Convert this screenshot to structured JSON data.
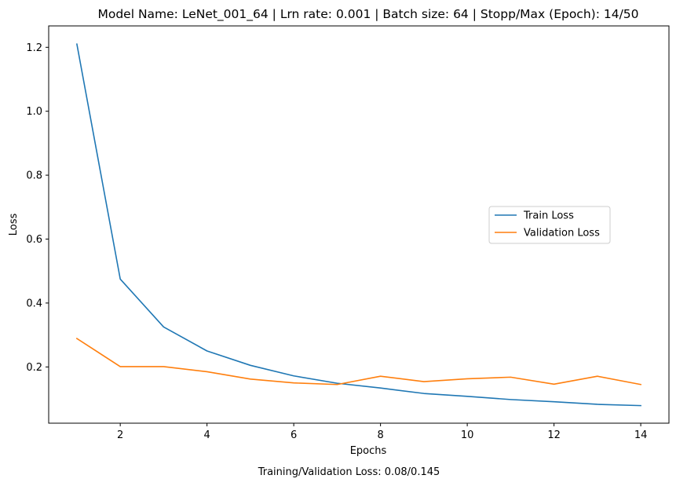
{
  "caption": "Training/Validation Loss: 0.08/0.145",
  "chart_data": {
    "type": "line",
    "title": "Model Name: LeNet_001_64 | Lrn rate: 0.001 | Batch size: 64 | Stopp/Max (Epoch): 14/50",
    "xlabel": "Epochs",
    "ylabel": "Loss",
    "xlim": [
      0.35,
      14.65
    ],
    "ylim": [
      0.024,
      1.267
    ],
    "xticks": [
      2,
      4,
      6,
      8,
      10,
      12,
      14
    ],
    "xtick_labels": [
      "2",
      "4",
      "6",
      "8",
      "10",
      "12",
      "14"
    ],
    "yticks": [
      0.2,
      0.4,
      0.6,
      0.8,
      1.0,
      1.2
    ],
    "ytick_labels": [
      "0.2",
      "0.4",
      "0.6",
      "0.8",
      "1.0",
      "1.2"
    ],
    "x": [
      1,
      2,
      3,
      4,
      5,
      6,
      7,
      8,
      9,
      10,
      11,
      12,
      13,
      14
    ],
    "series": [
      {
        "name": "Train Loss",
        "color": "#1f77b4",
        "values": [
          1.21,
          0.475,
          0.325,
          0.25,
          0.205,
          0.172,
          0.149,
          0.134,
          0.117,
          0.108,
          0.098,
          0.091,
          0.083,
          0.079
        ]
      },
      {
        "name": "Validation Loss",
        "color": "#ff7f0e",
        "values": [
          0.289,
          0.201,
          0.201,
          0.185,
          0.162,
          0.15,
          0.145,
          0.171,
          0.154,
          0.163,
          0.168,
          0.146,
          0.171,
          0.145
        ]
      }
    ],
    "legend_position": "center-right",
    "grid": false
  }
}
